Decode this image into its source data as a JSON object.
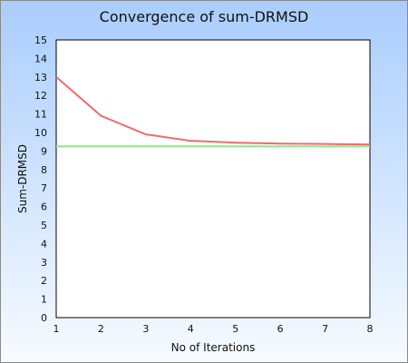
{
  "chart_data": {
    "type": "line",
    "title": "Convergence of sum-DRMSD",
    "xlabel": "No of Iterations",
    "ylabel": "Sum-DRMSD",
    "x": [
      1,
      2,
      3,
      4,
      5,
      6,
      7,
      8
    ],
    "xlim": [
      1,
      8
    ],
    "ylim": [
      0,
      15
    ],
    "x_ticks": [
      "1",
      "2",
      "3",
      "4",
      "5",
      "6",
      "7",
      "8"
    ],
    "y_ticks": [
      "0",
      "1",
      "2",
      "3",
      "4",
      "5",
      "6",
      "7",
      "8",
      "9",
      "10",
      "11",
      "12",
      "13",
      "14",
      "15"
    ],
    "grid": false,
    "legend": "none",
    "series": [
      {
        "values": [
          13.0,
          10.9,
          9.9,
          9.55,
          9.45,
          9.4,
          9.38,
          9.35
        ],
        "color": "#ef6a6a"
      },
      {
        "values": [
          9.25,
          9.25,
          9.25,
          9.25,
          9.25,
          9.25,
          9.25,
          9.25
        ],
        "color": "#8ee88e"
      }
    ]
  }
}
